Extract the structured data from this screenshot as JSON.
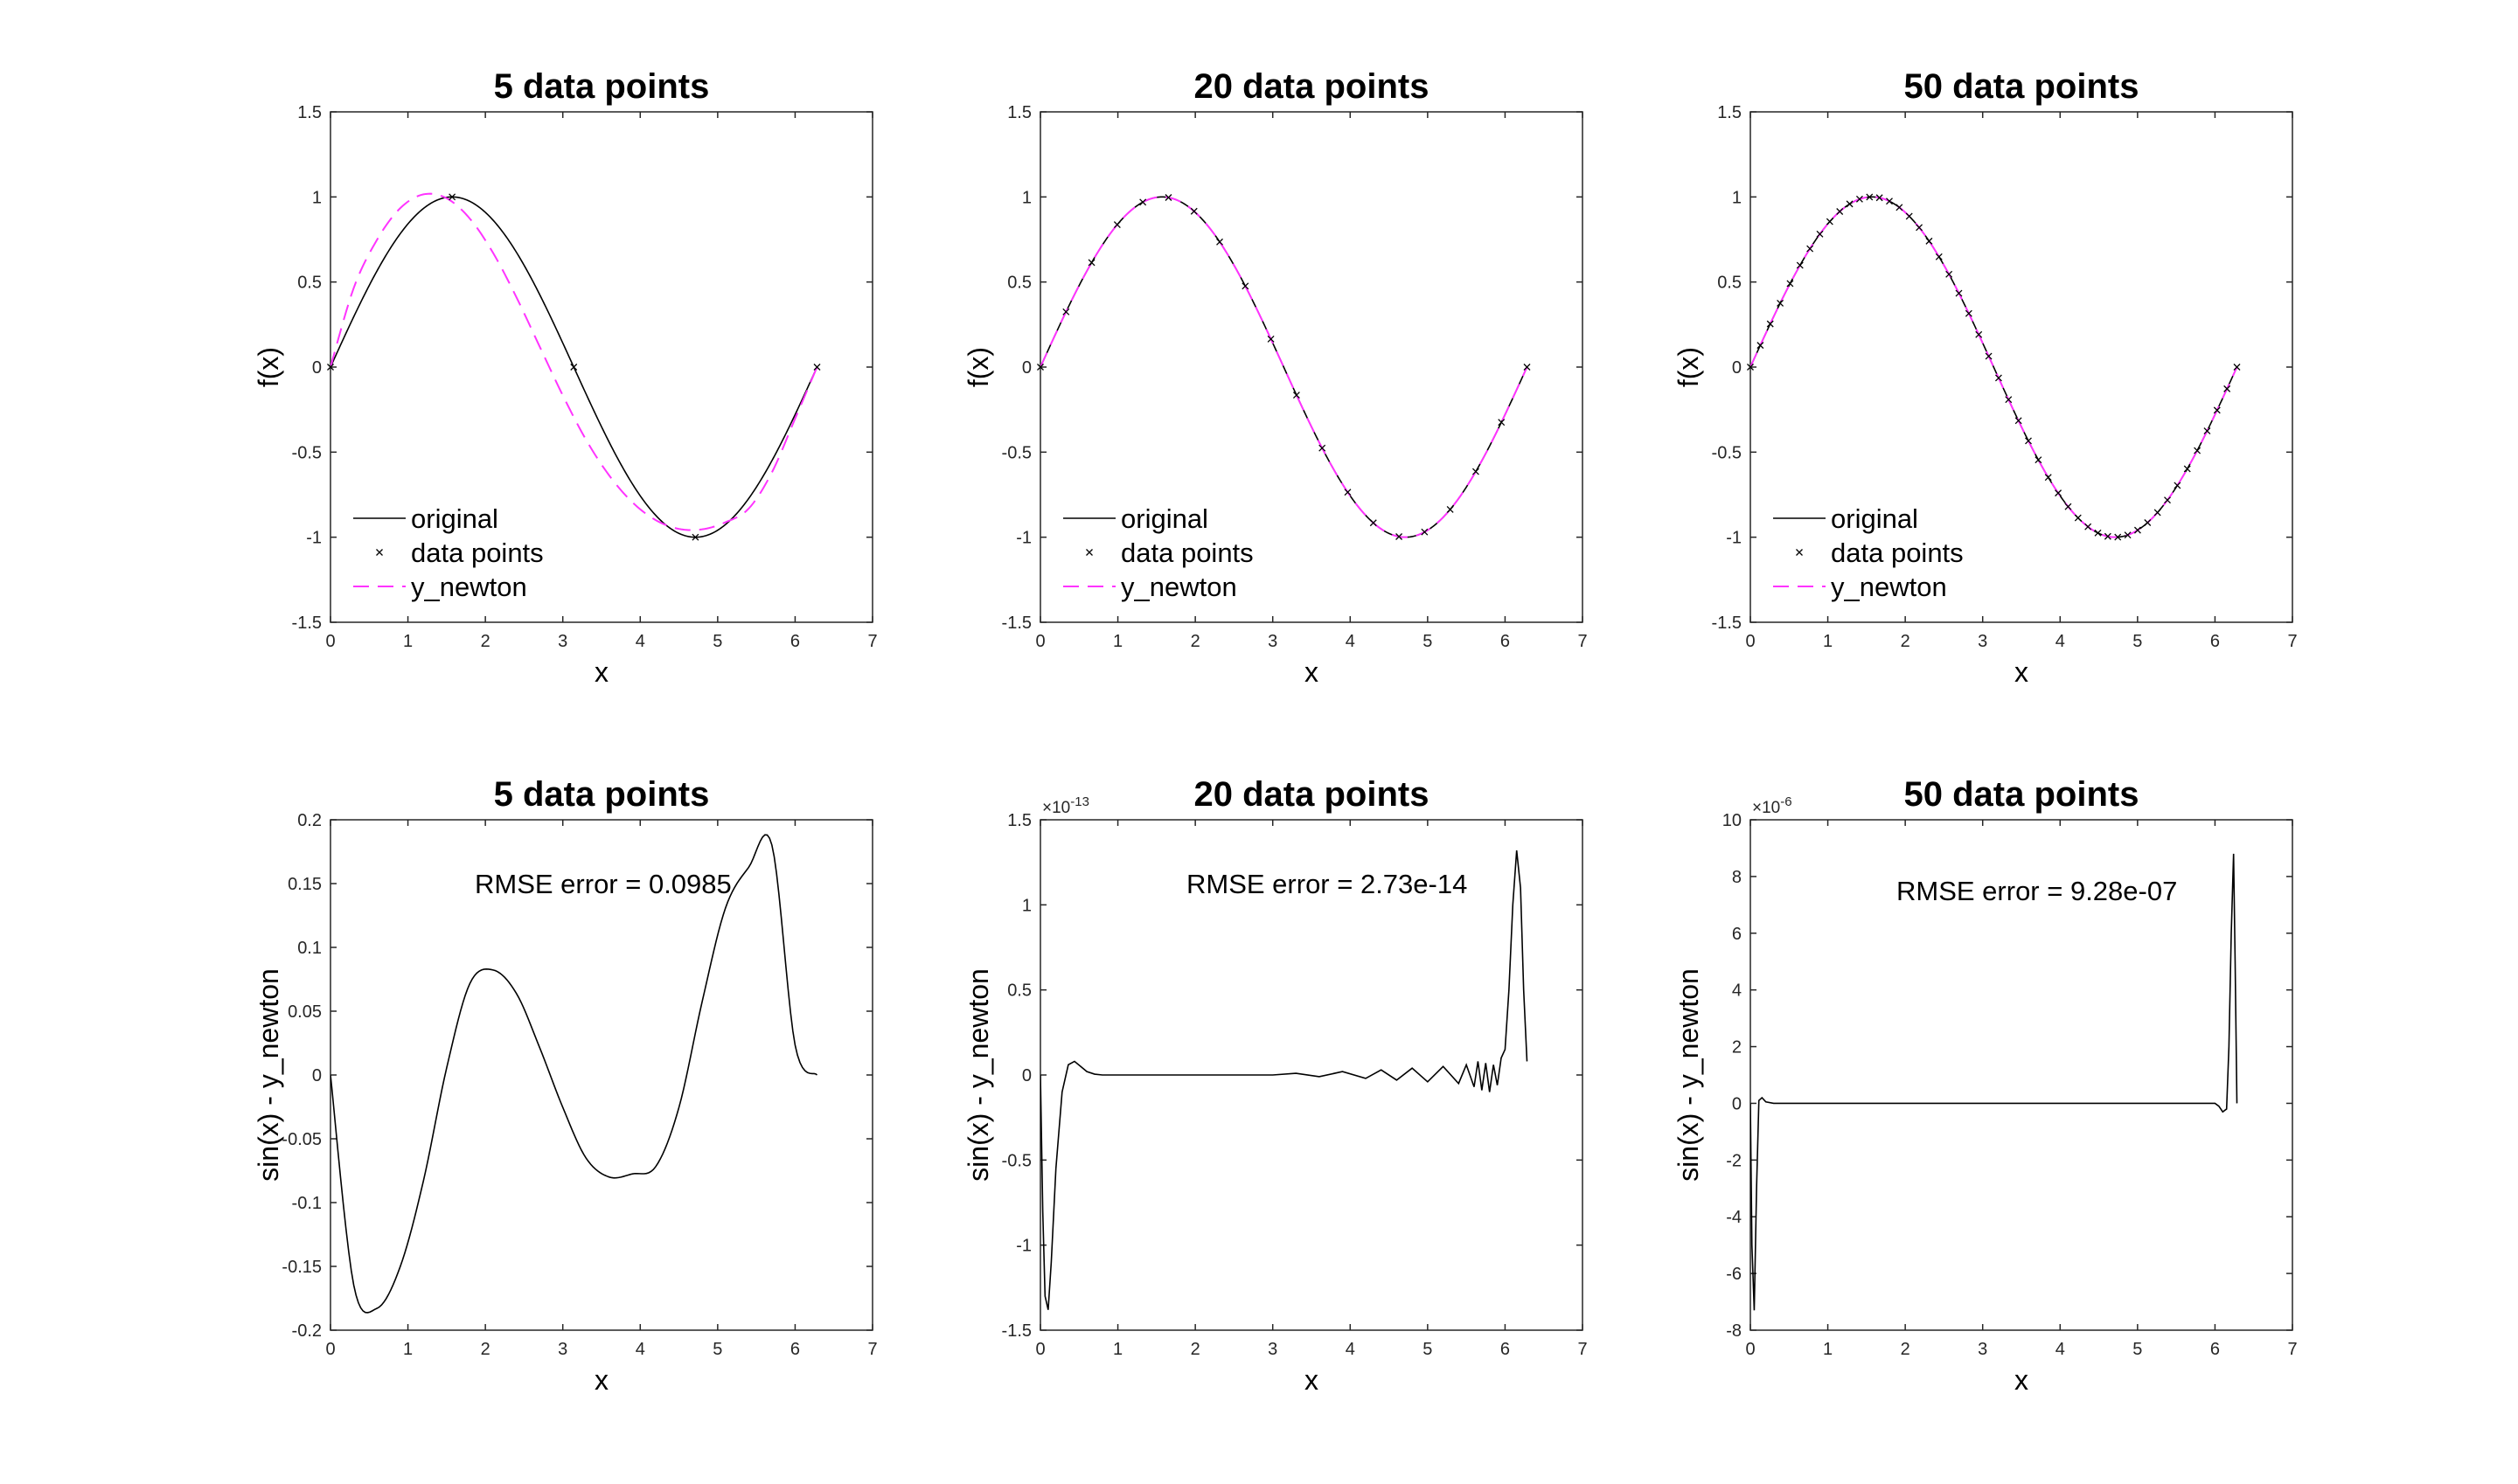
{
  "colors": {
    "original": "#000000",
    "newton": "#ff33ff",
    "axes": "#262626"
  },
  "chart_data": [
    {
      "type": "line",
      "title": "5 data points",
      "xlabel": "x",
      "ylabel": "f(x)",
      "xlim": [
        0,
        7
      ],
      "ylim": [
        -1.5,
        1.5
      ],
      "xticks": [
        "0",
        "1",
        "2",
        "3",
        "4",
        "5",
        "6",
        "7"
      ],
      "yticks": [
        "-1.5",
        "-1",
        "-0.5",
        "0",
        "0.5",
        "1",
        "1.5"
      ],
      "legend": {
        "location": "bottom-left",
        "entries": [
          "original",
          "data points",
          "y_newton"
        ]
      },
      "data_points": {
        "x": [
          0,
          1.5708,
          3.1416,
          4.7124,
          6.2832
        ],
        "y": [
          0,
          1,
          0,
          -1,
          0
        ]
      },
      "series": [
        {
          "name": "original",
          "function": "sin(x)",
          "style": "solid"
        },
        {
          "name": "y_newton",
          "function": "newton interpolant through 5 data points",
          "style": "dashed",
          "x": [
            0,
            0.3,
            0.6,
            0.9,
            1.2,
            1.5,
            1.8,
            2.1,
            2.4,
            2.7,
            3.0,
            3.3,
            3.6,
            3.9,
            4.2,
            4.5,
            4.8,
            5.1,
            5.4,
            5.7,
            6.0,
            6.2832
          ],
          "y": [
            0,
            0.4646,
            0.7475,
            0.9336,
            1.015,
            0.992,
            0.8722,
            0.6709,
            0.4114,
            0.1218,
            -0.1665,
            -0.4272,
            -0.6376,
            -0.7953,
            -0.8995,
            -0.9513,
            -0.9538,
            -0.9123,
            -0.8322,
            -0.6194,
            -0.3028,
            0
          ]
        }
      ]
    },
    {
      "type": "line",
      "title": "20 data points",
      "xlabel": "x",
      "ylabel": "f(x)",
      "xlim": [
        0,
        7
      ],
      "ylim": [
        -1.5,
        1.5
      ],
      "xticks": [
        "0",
        "1",
        "2",
        "3",
        "4",
        "5",
        "6",
        "7"
      ],
      "yticks": [
        "-1.5",
        "-1",
        "-0.5",
        "0",
        "0.5",
        "1",
        "1.5"
      ],
      "legend": {
        "location": "bottom-left",
        "entries": [
          "original",
          "data points",
          "y_newton"
        ]
      },
      "data_points": {
        "count": 20,
        "x_range": [
          0,
          6.2832
        ],
        "function": "sin(x)"
      },
      "series": [
        {
          "name": "original",
          "function": "sin(x)",
          "style": "solid"
        },
        {
          "name": "y_newton",
          "function": "sin(x)",
          "style": "dashed"
        }
      ]
    },
    {
      "type": "line",
      "title": "50 data points",
      "xlabel": "x",
      "ylabel": "f(x)",
      "xlim": [
        0,
        7
      ],
      "ylim": [
        -1.5,
        1.5
      ],
      "xticks": [
        "0",
        "1",
        "2",
        "3",
        "4",
        "5",
        "6",
        "7"
      ],
      "yticks": [
        "-1.5",
        "-1",
        "-0.5",
        "0",
        "0.5",
        "1",
        "1.5"
      ],
      "legend": {
        "location": "bottom-left",
        "entries": [
          "original",
          "data points",
          "y_newton"
        ]
      },
      "data_points": {
        "count": 50,
        "x_range": [
          0,
          6.2832
        ],
        "function": "sin(x)"
      },
      "series": [
        {
          "name": "original",
          "function": "sin(x)",
          "style": "solid"
        },
        {
          "name": "y_newton",
          "function": "sin(x)",
          "style": "dashed"
        }
      ]
    },
    {
      "type": "line",
      "title": "5 data points",
      "xlabel": "x",
      "ylabel": "sin(x) - y_newton",
      "xlim": [
        0,
        7
      ],
      "ylim": [
        -0.2,
        0.2
      ],
      "xticks": [
        "0",
        "1",
        "2",
        "3",
        "4",
        "5",
        "6",
        "7"
      ],
      "yticks": [
        "-0.2",
        "-0.15",
        "-0.1",
        "-0.05",
        "0",
        "0.05",
        "0.1",
        "0.15",
        "0.2"
      ],
      "annotation": "RMSE error = 0.0985",
      "series": [
        {
          "name": "",
          "style": "solid",
          "x": [
            0,
            0.3,
            0.6,
            0.9,
            1.2,
            1.5,
            1.8,
            2.1,
            2.4,
            2.7,
            3.0,
            3.3,
            3.6,
            3.9,
            4.2,
            4.5,
            4.8,
            5.1,
            5.4,
            5.7,
            6.0,
            6.2832
          ],
          "y": [
            0,
            -0.1646,
            -0.1829,
            -0.1503,
            -0.083,
            0.0055,
            0.0717,
            0.0823,
            0.064,
            0.0216,
            -0.0254,
            -0.0651,
            -0.08,
            -0.0775,
            -0.0718,
            -0.0254,
            0.0576,
            0.1307,
            0.1627,
            0.1802,
            0.0234,
            0
          ]
        }
      ]
    },
    {
      "type": "line",
      "title": "20 data points",
      "xlabel": "x",
      "ylabel": "sin(x) - y_newton",
      "xlim": [
        0,
        7
      ],
      "ylim": [
        -1.5,
        1.5
      ],
      "y_exponent_base": "×10",
      "y_exponent_power": "-13",
      "xticks": [
        "0",
        "1",
        "2",
        "3",
        "4",
        "5",
        "6",
        "7"
      ],
      "yticks": [
        "-1.5",
        "-1",
        "-0.5",
        "0",
        "0.5",
        "1",
        "1.5"
      ],
      "annotation": "RMSE error = 2.73e-14",
      "series": [
        {
          "name": "",
          "style": "solid",
          "x": [
            0,
            0.03,
            0.06,
            0.1,
            0.14,
            0.2,
            0.28,
            0.36,
            0.44,
            0.52,
            0.6,
            0.7,
            0.8,
            1.0,
            1.5,
            2.0,
            2.5,
            3.0,
            3.3,
            3.6,
            3.9,
            4.2,
            4.4,
            4.6,
            4.8,
            5.0,
            5.2,
            5.4,
            5.5,
            5.6,
            5.65,
            5.7,
            5.75,
            5.8,
            5.85,
            5.9,
            5.95,
            6.0,
            6.05,
            6.1,
            6.15,
            6.2,
            6.24,
            6.2832
          ],
          "y": [
            0,
            -0.8,
            -1.3,
            -1.38,
            -1.1,
            -0.55,
            -0.1,
            0.06,
            0.08,
            0.05,
            0.02,
            0.005,
            0,
            0,
            0,
            0,
            0,
            0,
            0.01,
            -0.01,
            0.02,
            -0.02,
            0.03,
            -0.03,
            0.04,
            -0.04,
            0.05,
            -0.05,
            0.06,
            -0.07,
            0.08,
            -0.09,
            0.07,
            -0.1,
            0.06,
            -0.06,
            0.1,
            0.15,
            0.5,
            1.0,
            1.32,
            1.1,
            0.5,
            0.08
          ]
        }
      ]
    },
    {
      "type": "line",
      "title": "50 data points",
      "xlabel": "x",
      "ylabel": "sin(x) - y_newton",
      "xlim": [
        0,
        7
      ],
      "ylim": [
        -8,
        10
      ],
      "y_exponent_base": "×10",
      "y_exponent_power": "-6",
      "xticks": [
        "0",
        "1",
        "2",
        "3",
        "4",
        "5",
        "6",
        "7"
      ],
      "yticks": [
        "-8",
        "-6",
        "-4",
        "-2",
        "0",
        "2",
        "4",
        "6",
        "8",
        "10"
      ],
      "annotation": "RMSE error = 9.28e-07",
      "series": [
        {
          "name": "",
          "style": "solid",
          "x": [
            0,
            0.02,
            0.05,
            0.08,
            0.11,
            0.15,
            0.2,
            0.3,
            0.5,
            1.0,
            2.0,
            3.0,
            4.0,
            5.0,
            5.9,
            6.0,
            6.05,
            6.1,
            6.15,
            6.18,
            6.21,
            6.24,
            6.26,
            6.2832
          ],
          "y": [
            0,
            -5,
            -7.3,
            -3,
            0.1,
            0.2,
            0.05,
            0,
            0,
            0,
            0,
            0,
            0,
            0,
            0,
            0,
            -0.1,
            -0.3,
            -0.2,
            2,
            6,
            8.8,
            5,
            0
          ]
        }
      ]
    }
  ]
}
